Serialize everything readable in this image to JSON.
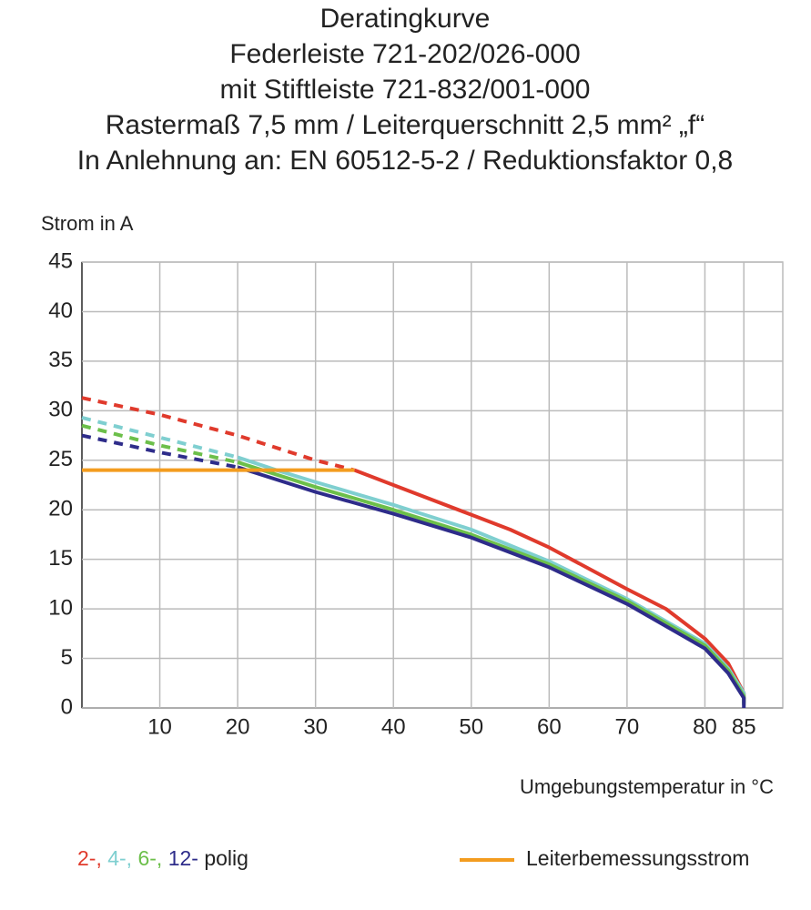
{
  "chart_data": {
    "type": "line",
    "title": [
      "Deratingkurve",
      "Federleiste 721-202/026-000",
      "mit Stiftleiste 721-832/001-000",
      "Rastermaß 7,5 mm / Leiterquerschnitt 2,5 mm² „f“",
      "In Anlehnung an: EN 60512-5-2 / Reduktionsfaktor 0,8"
    ],
    "y_label": "Strom in A",
    "x_label": "Umgebungstemperatur in °C",
    "xlim": [
      0,
      90
    ],
    "xticks": [
      10,
      20,
      30,
      40,
      50,
      60,
      70,
      80,
      85
    ],
    "ylim": [
      0,
      45
    ],
    "yticks": [
      0,
      5,
      10,
      15,
      20,
      25,
      30,
      35,
      40,
      45
    ],
    "grid": true,
    "legend_suffix": "polig",
    "series": [
      {
        "name": "2-,",
        "color": "#e03a2c",
        "dash_below_x": 35,
        "x": [
          0,
          10,
          20,
          30,
          35,
          40,
          50,
          55,
          60,
          70,
          75,
          80,
          83,
          85,
          85
        ],
        "values": [
          31.3,
          29.6,
          27.5,
          25,
          24,
          22.5,
          19.5,
          18,
          16.2,
          12,
          10,
          7,
          4.5,
          1.5,
          0.5
        ]
      },
      {
        "name": "4-,",
        "color": "#7fcfd0",
        "dash_below_x": 20,
        "x": [
          0,
          10,
          20,
          25,
          30,
          40,
          50,
          60,
          70,
          80,
          83,
          85,
          85
        ],
        "values": [
          29.3,
          27.3,
          25.3,
          24,
          22.8,
          20.5,
          18,
          14.8,
          11,
          6.5,
          4,
          1.5,
          0.5
        ]
      },
      {
        "name": "6-,",
        "color": "#6cbf4a",
        "dash_below_x": 20,
        "x": [
          0,
          10,
          20,
          30,
          40,
          50,
          60,
          70,
          80,
          83,
          85,
          85
        ],
        "values": [
          28.5,
          26.5,
          24.8,
          22.3,
          20,
          17.5,
          14.5,
          10.8,
          6.3,
          3.8,
          1.2,
          0.3
        ]
      },
      {
        "name": "12-",
        "color": "#2e2c8a",
        "dash_below_x": 20,
        "x": [
          0,
          10,
          20,
          30,
          40,
          50,
          60,
          70,
          80,
          83,
          85,
          85
        ],
        "values": [
          27.5,
          25.8,
          24.3,
          21.8,
          19.6,
          17.2,
          14.2,
          10.5,
          6,
          3.5,
          1,
          0
        ]
      },
      {
        "name": "Leiterbemessungsstrom",
        "color": "#f39c1f",
        "dash_below_x": 0,
        "x": [
          0,
          35
        ],
        "values": [
          24,
          24
        ]
      }
    ]
  }
}
